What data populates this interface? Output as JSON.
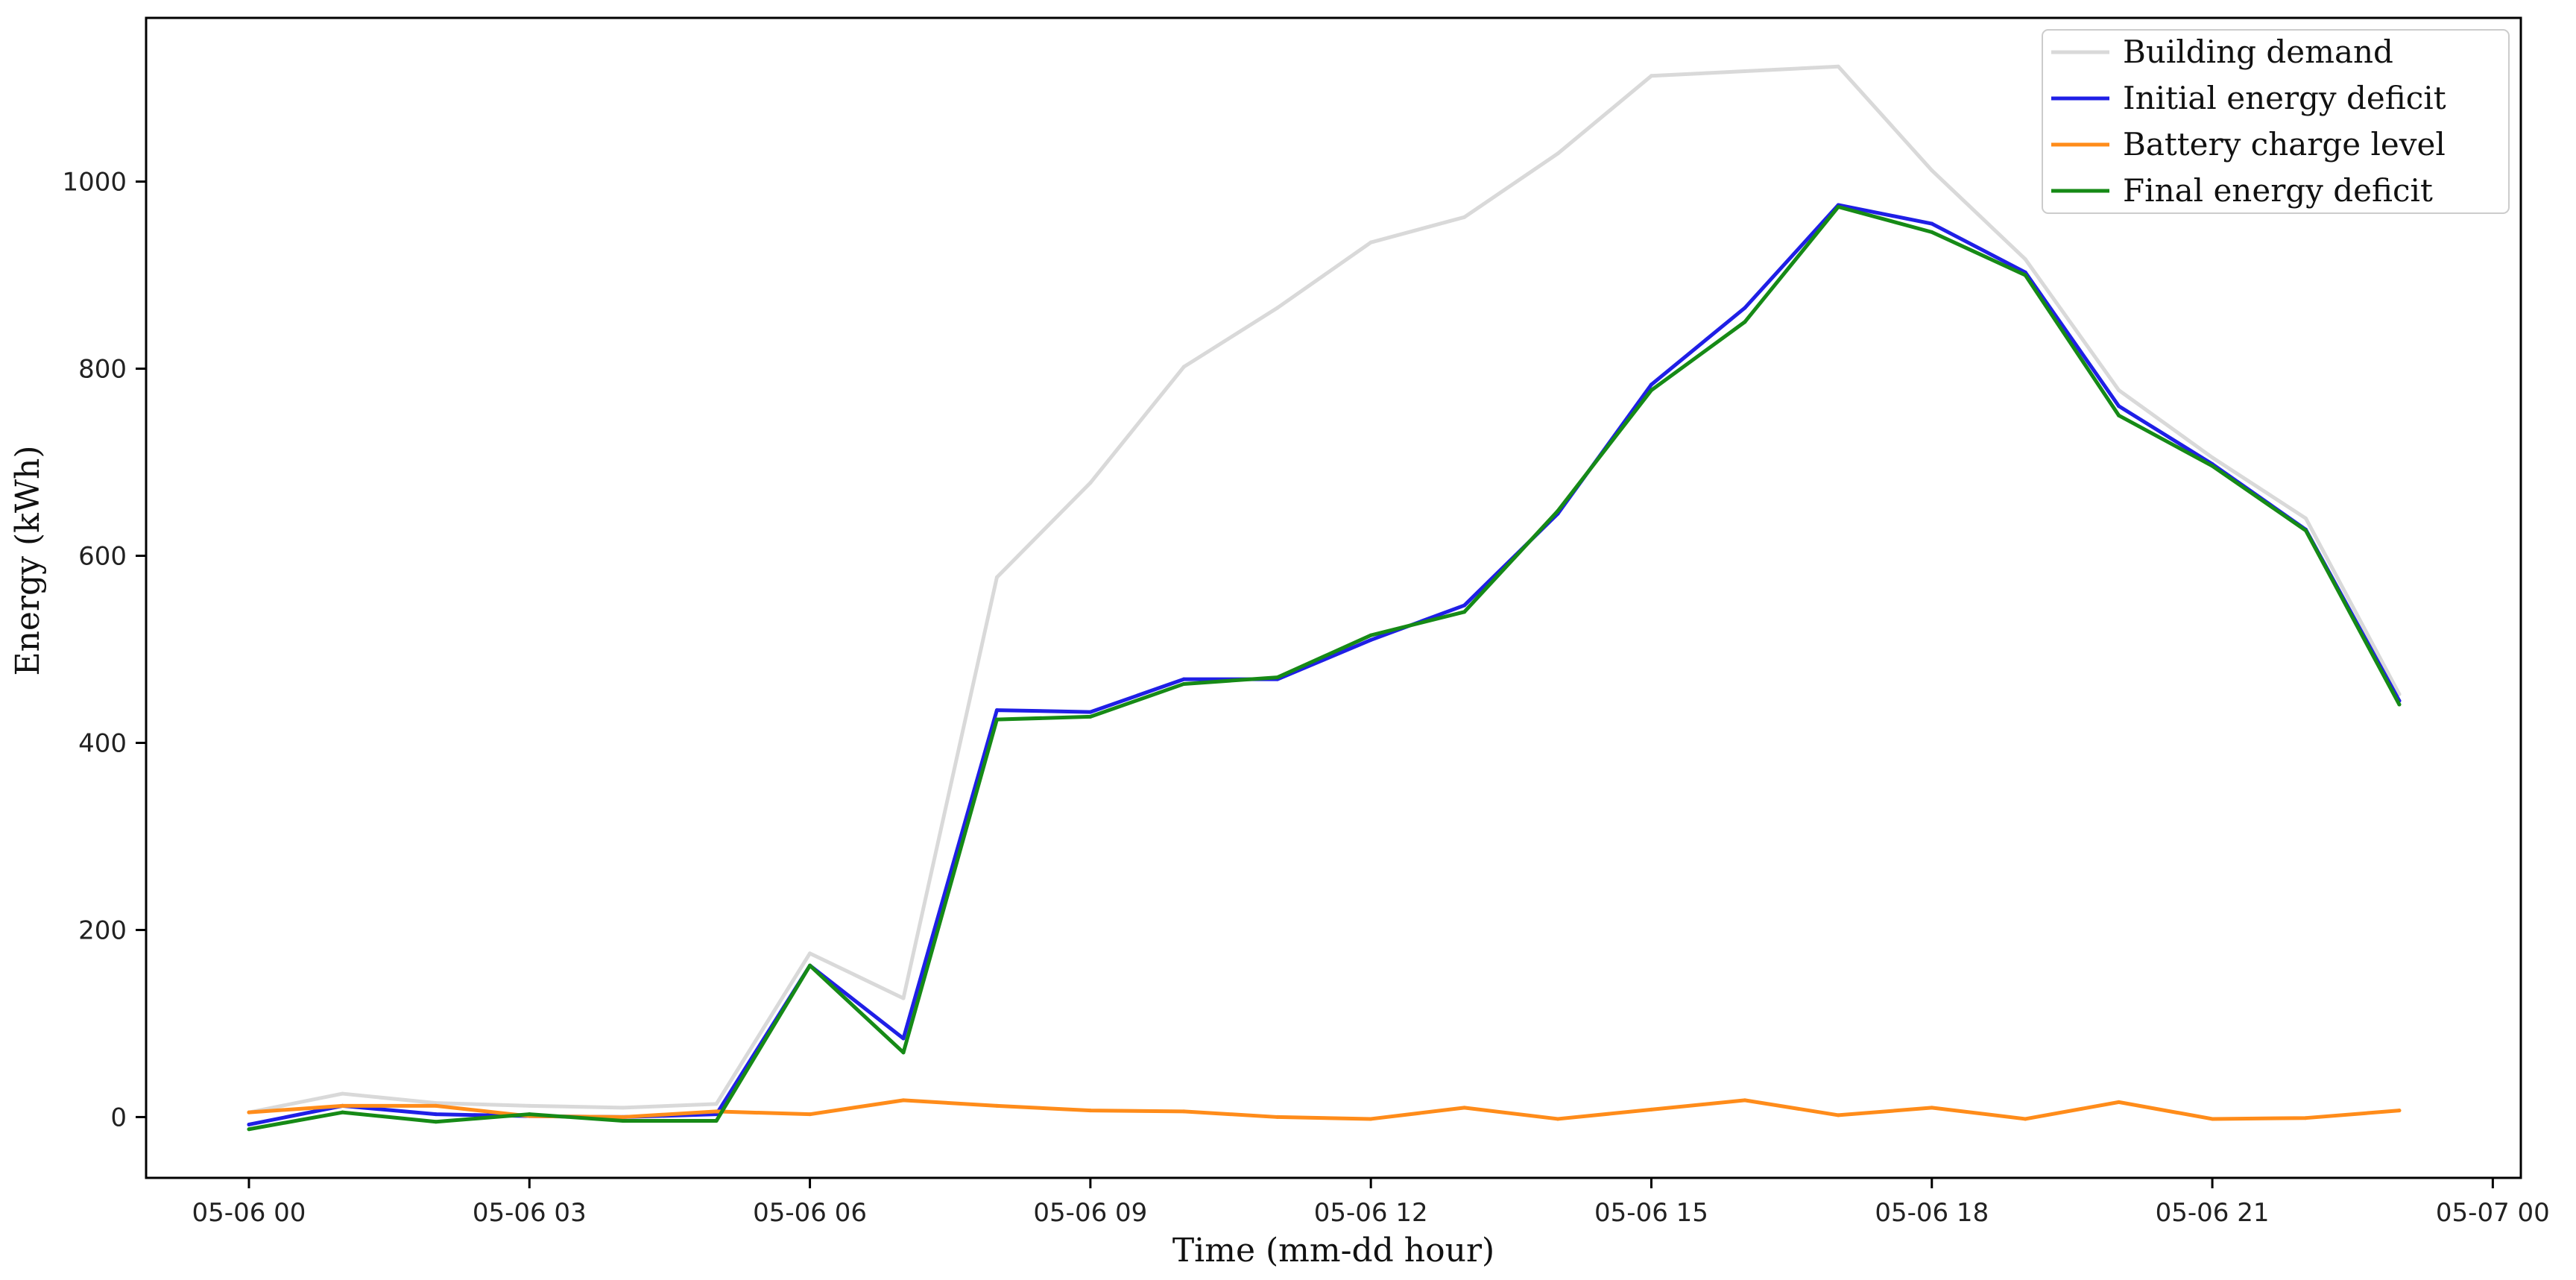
{
  "chart_data": {
    "type": "line",
    "title": "",
    "xlabel": "Time (mm-dd hour)",
    "ylabel": "Energy (kWh)",
    "x_unit": "hour",
    "x_tick_labels": [
      "05-06 00",
      "05-06 03",
      "05-06 06",
      "05-06 09",
      "05-06 12",
      "05-06 15",
      "05-06 18",
      "05-06 21",
      "05-07 00"
    ],
    "x_ticks": [
      0,
      3,
      6,
      9,
      12,
      15,
      18,
      21,
      24
    ],
    "xlim": [
      -1.1,
      24.3
    ],
    "y_ticks": [
      0,
      200,
      400,
      600,
      800,
      1000
    ],
    "ylim": [
      -65,
      1175
    ],
    "grid": false,
    "legend_position": "top-right",
    "x": [
      0,
      1,
      2,
      3,
      4,
      5,
      6,
      7,
      8,
      9,
      10,
      11,
      12,
      13,
      14,
      15,
      16,
      17,
      18,
      19,
      20,
      21,
      22,
      23
    ],
    "series": [
      {
        "name": "Building demand",
        "color": "#d9d9d9",
        "values": [
          5,
          25,
          15,
          12,
          10,
          14,
          175,
          127,
          577,
          678,
          802,
          865,
          935,
          962,
          1030,
          1113,
          1118,
          1123,
          1012,
          917,
          777,
          705,
          640,
          452
        ]
      },
      {
        "name": "Initial energy deficit",
        "color": "#1f1fe6",
        "values": [
          -8,
          12,
          3,
          1,
          0,
          3,
          162,
          84,
          435,
          433,
          468,
          468,
          510,
          547,
          645,
          783,
          865,
          975,
          955,
          903,
          760,
          698,
          628,
          445
        ]
      },
      {
        "name": "Battery charge level",
        "color": "#ff8c1a",
        "values": [
          5,
          12,
          12,
          1,
          0,
          6,
          3,
          18,
          12,
          7,
          6,
          0,
          -2,
          10,
          -2,
          8,
          18,
          2,
          10,
          -2,
          16,
          -2,
          -1,
          7
        ]
      },
      {
        "name": "Final energy deficit",
        "color": "#168a16",
        "values": [
          -13,
          5,
          -5,
          3,
          -4,
          -4,
          162,
          69,
          425,
          428,
          463,
          470,
          515,
          540,
          648,
          777,
          850,
          973,
          946,
          900,
          750,
          696,
          627,
          441
        ]
      }
    ]
  }
}
